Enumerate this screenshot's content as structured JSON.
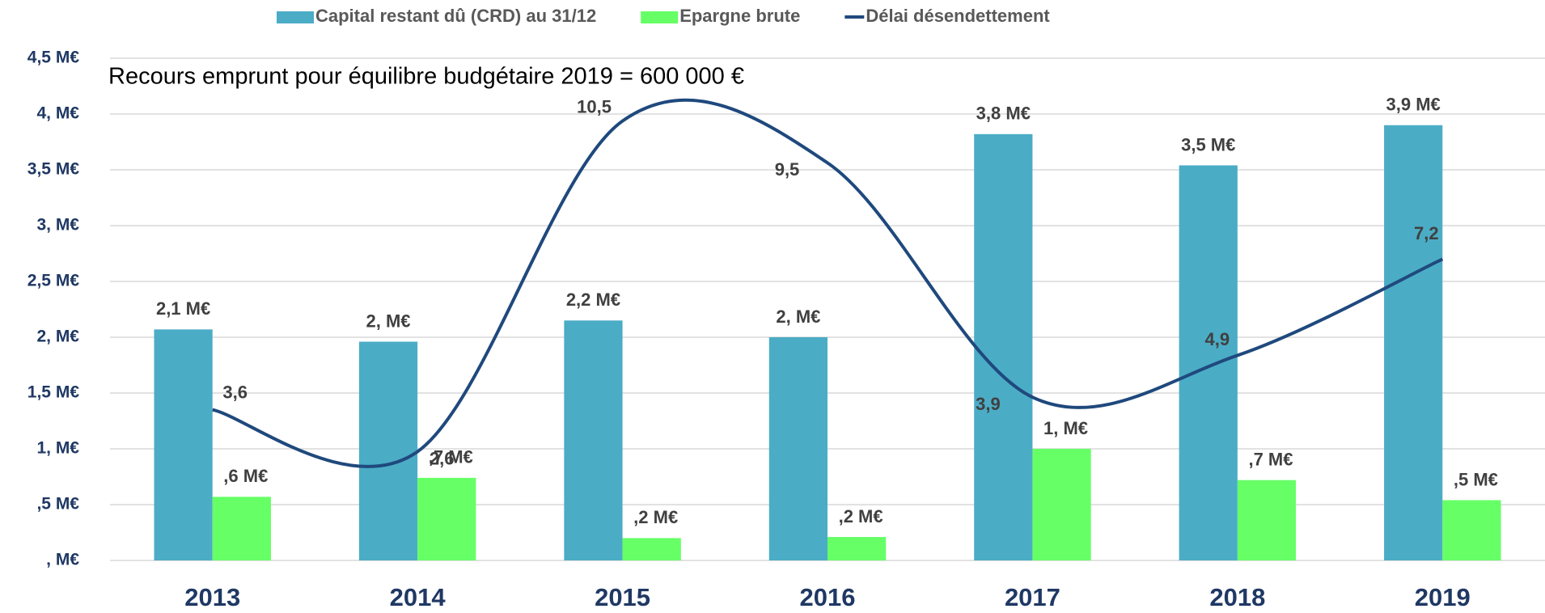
{
  "chart_data": {
    "type": "bar",
    "annotation": "Recours emprunt pour équilibre budgétaire 2019 = 600 000 €",
    "categories": [
      "2013",
      "2014",
      "2015",
      "2016",
      "2017",
      "2018",
      "2019"
    ],
    "series": [
      {
        "name": "Capital restant dû (CRD) au 31/12",
        "color": "#4bacc6",
        "type": "bar",
        "values": [
          2.07,
          1.96,
          2.15,
          2.0,
          3.82,
          3.54,
          3.9
        ],
        "value_labels": [
          "2,1 M€",
          "2, M€",
          "2,2 M€",
          "2, M€",
          "3,8 M€",
          "3,5 M€",
          "3,9 M€"
        ]
      },
      {
        "name": "Epargne brute",
        "color": "#66ff66",
        "type": "bar",
        "values": [
          0.57,
          0.74,
          0.2,
          0.21,
          1.0,
          0.72,
          0.54
        ],
        "value_labels": [
          ",6 M€",
          ",7 M€",
          ",2 M€",
          ",2 M€",
          "1, M€",
          ",7 M€",
          ",5 M€"
        ]
      },
      {
        "name": "Délai désendettement",
        "color": "#1f497d",
        "type": "line",
        "axis": "y2",
        "smooth": true,
        "values": [
          3.6,
          2.6,
          10.5,
          9.5,
          3.9,
          4.9,
          7.2
        ],
        "value_labels": [
          "3,6",
          "2,6",
          "10,5",
          "9,5",
          "3,9",
          "4,9",
          "7,2"
        ]
      }
    ],
    "ylim": [
      0,
      4.5
    ],
    "yticks": [
      {
        "value": 0,
        "label": ", M€"
      },
      {
        "value": 0.5,
        "label": ",5 M€"
      },
      {
        "value": 1,
        "label": "1, M€"
      },
      {
        "value": 1.5,
        "label": "1,5 M€"
      },
      {
        "value": 2,
        "label": "2, M€"
      },
      {
        "value": 2.5,
        "label": "2,5 M€"
      },
      {
        "value": 3,
        "label": "3, M€"
      },
      {
        "value": 3.5,
        "label": "3,5 M€"
      },
      {
        "value": 4,
        "label": "4, M€"
      },
      {
        "value": 4.5,
        "label": "4,5 M€"
      }
    ],
    "y2lim": [
      0,
      12
    ],
    "grid": true,
    "legend": "top"
  }
}
